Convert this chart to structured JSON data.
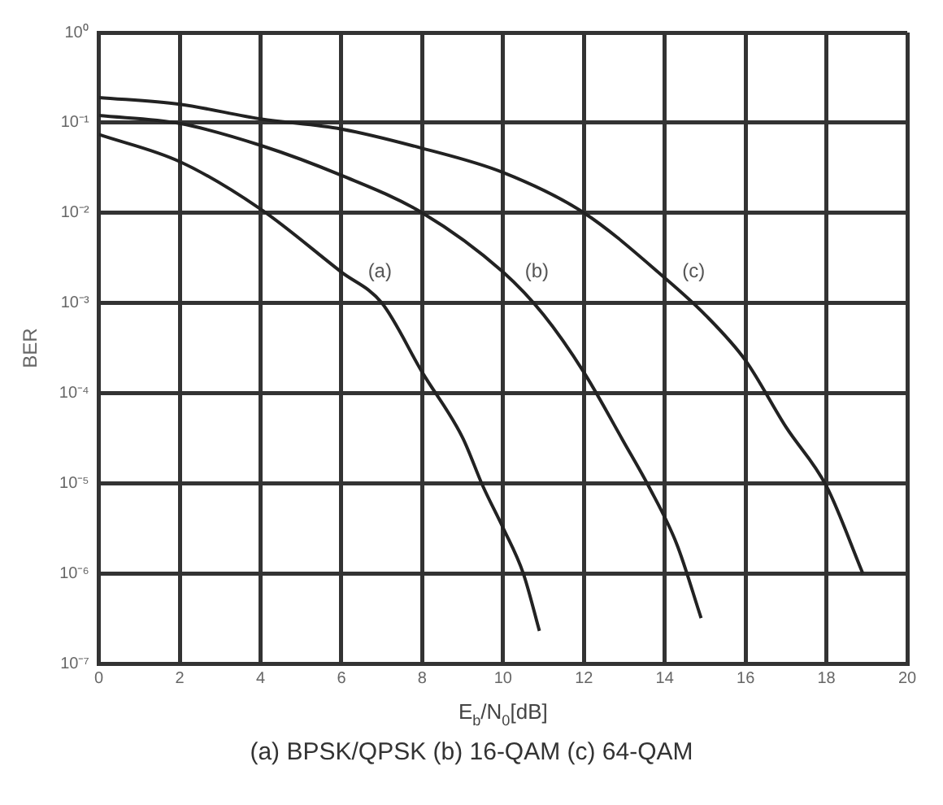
{
  "chart_data": {
    "type": "line",
    "xlabel": "E$_{b}$/N$_{0}$[dB]",
    "ylabel": "BER",
    "xlim": [
      0,
      20
    ],
    "xticks": [
      0,
      2,
      4,
      6,
      8,
      10,
      12,
      14,
      16,
      18,
      20
    ],
    "ylim": [
      1e-07,
      1
    ],
    "log": "y",
    "yticks": [
      {
        "value": 1,
        "label": "10⁰"
      },
      {
        "value": 0.1,
        "label": "10⁻¹"
      },
      {
        "value": 0.01,
        "label": "10⁻²"
      },
      {
        "value": 0.001,
        "label": "10⁻³"
      },
      {
        "value": 0.0001,
        "label": "10⁻⁴"
      },
      {
        "value": 1e-05,
        "label": "10⁻⁵"
      },
      {
        "value": 1e-06,
        "label": "10⁻⁶"
      },
      {
        "value": 1e-07,
        "label": "10⁻⁷"
      }
    ],
    "grid": true,
    "marker": "none",
    "line_style": "solid",
    "series": [
      {
        "name": "(a)",
        "color": "#222222",
        "x": [
          0,
          2,
          4,
          6,
          7,
          8,
          9,
          9.5,
          10,
          10.5,
          10.9
        ],
        "values": [
          0.074,
          0.037,
          0.011,
          0.0022,
          0.001,
          0.00017,
          3.2e-05,
          9.3e-06,
          3.2e-06,
          1e-06,
          2.3e-07
        ]
      },
      {
        "name": "(b)",
        "color": "#222222",
        "x": [
          0,
          2,
          4,
          6,
          8,
          10,
          11,
          12,
          13,
          13.6,
          14.3,
          14.9
        ],
        "values": [
          0.12,
          0.098,
          0.056,
          0.026,
          0.01,
          0.0022,
          0.00074,
          0.00017,
          2.8e-05,
          9.3e-06,
          2.1e-06,
          3.2e-07
        ]
      },
      {
        "name": "(c)",
        "color": "#222222",
        "x": [
          0,
          2,
          4,
          6,
          8,
          10,
          12,
          14,
          15,
          16,
          17,
          18,
          18.9
        ],
        "values": [
          0.19,
          0.16,
          0.11,
          0.085,
          0.052,
          0.028,
          0.01,
          0.0019,
          0.00074,
          0.00023,
          4.2e-05,
          9.3e-06,
          1e-06
        ]
      }
    ],
    "annotations": [
      "(a) BPSK/QPSK (b) 16-QAM (c) 64-QAM"
    ]
  }
}
